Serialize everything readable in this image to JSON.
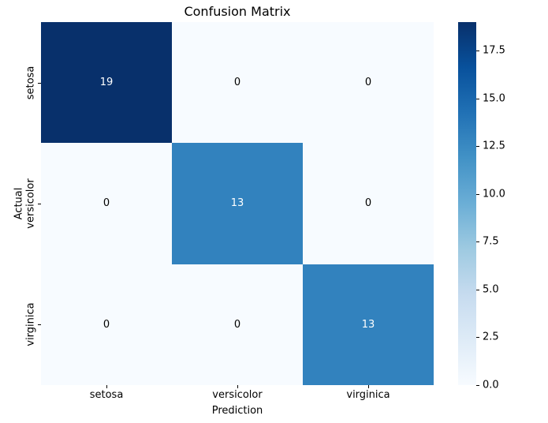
{
  "chart_data": {
    "type": "heatmap",
    "title": "Confusion Matrix",
    "xlabel": "Prediction",
    "ylabel": "Actual",
    "x_categories": [
      "setosa",
      "versicolor",
      "virginica"
    ],
    "y_categories": [
      "setosa",
      "versicolor",
      "virginica"
    ],
    "matrix": [
      [
        19,
        0,
        0
      ],
      [
        0,
        13,
        0
      ],
      [
        0,
        0,
        13
      ]
    ],
    "vmin": 0,
    "vmax": 19,
    "colormap": "Blues",
    "colormap_stops": [
      "#f7fbff",
      "#deebf7",
      "#c6dbef",
      "#9ecae1",
      "#6baed6",
      "#4292c6",
      "#2171b5",
      "#08519c",
      "#08306b"
    ],
    "colorbar_ticks": [
      "0.0",
      "2.5",
      "5.0",
      "7.5",
      "10.0",
      "12.5",
      "15.0",
      "17.5"
    ],
    "annotation_color_on_dark": "#ffffff",
    "annotation_color_on_light": "#000000",
    "legend_position": "right",
    "grid": false,
    "background_color": "#ffffff"
  }
}
